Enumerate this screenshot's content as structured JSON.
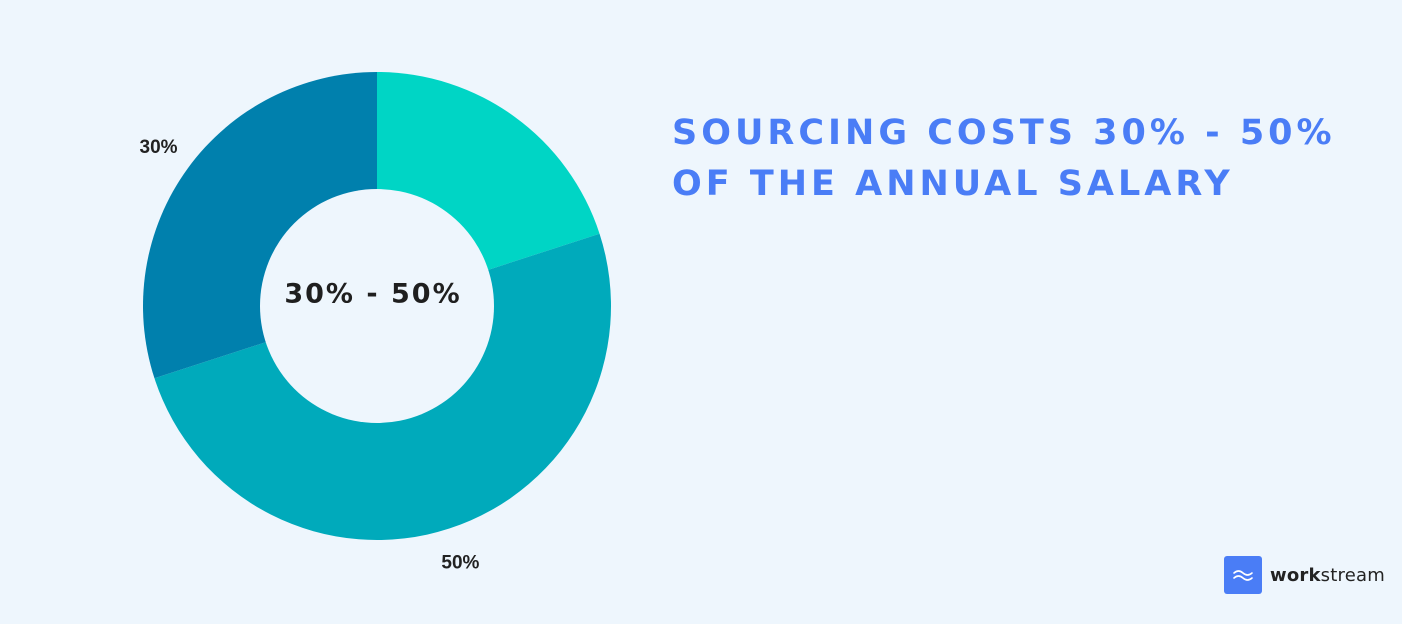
{
  "chart_data": {
    "type": "pie",
    "donut": true,
    "center_label": "30% - 50%",
    "title": "",
    "slices": [
      {
        "label": "",
        "value": 20,
        "color": "#00d5c5"
      },
      {
        "label": "50%",
        "value": 50,
        "color": "#00aabb"
      },
      {
        "label": "30%",
        "value": 30,
        "color": "#0080ad"
      }
    ],
    "start_angle_deg": 0,
    "direction": "clockwise",
    "legend": "none"
  },
  "headline": {
    "line1": "SOURCING COSTS 30% - 50%",
    "line2": "OF THE ANNUAL SALARY",
    "color": "#4a7df6"
  },
  "brand": {
    "name_bold": "work",
    "name_regular": "stream",
    "icon": "waves-icon",
    "badge_color": "#4a7df6"
  },
  "background_color": "#eef6fd"
}
